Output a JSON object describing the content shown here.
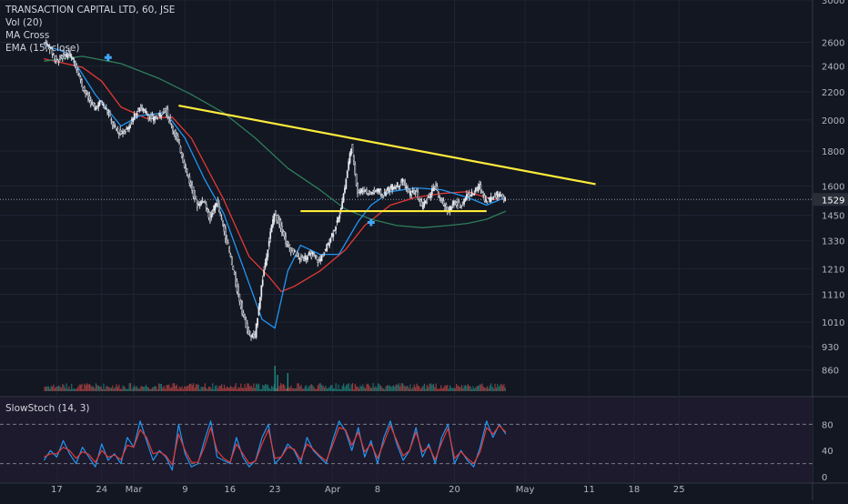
{
  "chart_data": [
    {
      "type": "candlestick",
      "title": "TRANSACTION CAPITAL LTD, 60, JSE",
      "indicators": [
        "Vol (20)",
        "MA Cross",
        "EMA (15, close)"
      ],
      "yscale": "log",
      "ylim": [
        800,
        3000
      ],
      "y_ticks": [
        3000,
        2600,
        2400,
        2200,
        2000,
        1800,
        1600,
        1450,
        1330,
        1210,
        1110,
        1010,
        930,
        860
      ],
      "last_price": 1529,
      "x_ticks": [
        "17",
        "24",
        "Mar",
        "9",
        "16",
        "23",
        "Apr",
        "8",
        "20",
        "May",
        "11",
        "18",
        "25"
      ],
      "x_tick_days": [
        -12,
        -5,
        0,
        8,
        15,
        22,
        31,
        38,
        50,
        61,
        71,
        78,
        85
      ],
      "close_series": {
        "x_day": [
          -14,
          -13,
          -12,
          -11,
          -10,
          -9,
          -8,
          -7,
          -6,
          -5,
          -4,
          -3,
          -2,
          -1,
          0,
          1,
          2,
          3,
          4,
          5,
          6,
          7,
          8,
          9,
          10,
          11,
          12,
          13,
          14,
          15,
          16,
          17,
          18,
          19,
          20,
          21,
          22,
          23,
          24,
          25,
          26,
          27,
          28,
          29,
          30,
          31,
          32,
          33,
          34,
          35,
          36,
          37,
          38,
          39,
          40,
          41,
          42,
          43,
          44,
          45,
          46,
          47,
          48,
          49,
          50,
          51,
          52,
          53,
          54,
          55,
          56,
          57,
          58
        ],
        "close": [
          2600,
          2560,
          2440,
          2480,
          2500,
          2420,
          2250,
          2150,
          2080,
          2130,
          2060,
          1950,
          1910,
          1940,
          2010,
          2090,
          2050,
          2000,
          2030,
          2080,
          1960,
          1860,
          1720,
          1600,
          1500,
          1530,
          1430,
          1520,
          1400,
          1280,
          1150,
          1050,
          970,
          960,
          1140,
          1300,
          1460,
          1400,
          1310,
          1280,
          1250,
          1260,
          1270,
          1240,
          1290,
          1360,
          1430,
          1590,
          1830,
          1570,
          1580,
          1560,
          1580,
          1550,
          1590,
          1600,
          1630,
          1560,
          1570,
          1490,
          1540,
          1600,
          1520,
          1470,
          1510,
          1500,
          1550,
          1560,
          1600,
          1520,
          1540,
          1560,
          1529
        ]
      },
      "moving_averages": [
        {
          "color": "#e53935",
          "points_day_price": [
            [
              -14,
              2460
            ],
            [
              -8,
              2390
            ],
            [
              -5,
              2280
            ],
            [
              -2,
              2090
            ],
            [
              2,
              2010
            ],
            [
              6,
              2020
            ],
            [
              9,
              1880
            ],
            [
              12,
              1660
            ],
            [
              14,
              1530
            ],
            [
              18,
              1260
            ],
            [
              21,
              1180
            ],
            [
              23,
              1120
            ],
            [
              25,
              1140
            ],
            [
              29,
              1200
            ],
            [
              33,
              1290
            ],
            [
              36,
              1400
            ],
            [
              40,
              1500
            ],
            [
              44,
              1540
            ],
            [
              48,
              1560
            ],
            [
              52,
              1570
            ],
            [
              56,
              1530
            ],
            [
              58,
              1530
            ]
          ]
        },
        {
          "color": "#2e7d5b",
          "points_day_price": [
            [
              -14,
              2440
            ],
            [
              -8,
              2480
            ],
            [
              -2,
              2420
            ],
            [
              4,
              2300
            ],
            [
              9,
              2180
            ],
            [
              14,
              2050
            ],
            [
              19,
              1880
            ],
            [
              24,
              1700
            ],
            [
              29,
              1580
            ],
            [
              33,
              1480
            ],
            [
              37,
              1430
            ],
            [
              41,
              1400
            ],
            [
              45,
              1390
            ],
            [
              49,
              1400
            ],
            [
              52,
              1410
            ],
            [
              55,
              1430
            ],
            [
              58,
              1470
            ]
          ]
        },
        {
          "color": "#2196f3",
          "points_day_price": [
            [
              -14,
              2580
            ],
            [
              -10,
              2500
            ],
            [
              -6,
              2180
            ],
            [
              -2,
              1960
            ],
            [
              1,
              2030
            ],
            [
              5,
              2050
            ],
            [
              8,
              1880
            ],
            [
              11,
              1640
            ],
            [
              14,
              1460
            ],
            [
              17,
              1220
            ],
            [
              20,
              1020
            ],
            [
              22,
              990
            ],
            [
              24,
              1200
            ],
            [
              26,
              1310
            ],
            [
              29,
              1270
            ],
            [
              32,
              1270
            ],
            [
              35,
              1420
            ],
            [
              37,
              1500
            ],
            [
              40,
              1570
            ],
            [
              44,
              1590
            ],
            [
              48,
              1580
            ],
            [
              52,
              1540
            ],
            [
              55,
              1500
            ],
            [
              58,
              1540
            ]
          ]
        }
      ],
      "cross_markers_day_price": [
        [
          -4,
          2470
        ],
        [
          37,
          1415
        ]
      ],
      "trendlines": [
        {
          "color": "#ffeb3b",
          "from_day_price": [
            7,
            2100
          ],
          "to_day_price": [
            72,
            1610
          ]
        },
        {
          "color": "#ffeb3b",
          "from_day_price": [
            26,
            1470
          ],
          "to_day_price": [
            55,
            1470
          ]
        }
      ]
    },
    {
      "type": "line",
      "title": "SlowStoch (14, 3)",
      "ylim": [
        0,
        100
      ],
      "y_ticks": [
        0,
        40,
        80
      ],
      "levels": [
        20,
        80
      ],
      "series": [
        {
          "color": "#2196f3",
          "x_day": [
            -14,
            -13,
            -12,
            -11,
            -10,
            -9,
            -8,
            -7,
            -6,
            -5,
            -4,
            -3,
            -2,
            -1,
            0,
            1,
            2,
            3,
            4,
            5,
            6,
            7,
            8,
            9,
            10,
            11,
            12,
            13,
            14,
            15,
            16,
            17,
            18,
            19,
            20,
            21,
            22,
            23,
            24,
            25,
            26,
            27,
            28,
            29,
            30,
            31,
            32,
            33,
            34,
            35,
            36,
            37,
            38,
            39,
            40,
            41,
            42,
            43,
            44,
            45,
            46,
            47,
            48,
            49,
            50,
            51,
            52,
            53,
            54,
            55,
            56,
            57,
            58
          ],
          "values": [
            25,
            40,
            30,
            55,
            35,
            20,
            45,
            30,
            15,
            50,
            25,
            35,
            20,
            60,
            45,
            85,
            55,
            25,
            40,
            30,
            10,
            80,
            35,
            15,
            20,
            55,
            85,
            30,
            25,
            20,
            60,
            30,
            15,
            25,
            60,
            80,
            20,
            30,
            50,
            40,
            20,
            60,
            40,
            30,
            20,
            55,
            85,
            70,
            40,
            75,
            30,
            55,
            20,
            60,
            85,
            50,
            25,
            40,
            75,
            30,
            50,
            20,
            60,
            80,
            20,
            40,
            25,
            15,
            45,
            85,
            60,
            80,
            65
          ]
        },
        {
          "color": "#e53935",
          "x_day": [
            -14,
            -13,
            -12,
            -11,
            -10,
            -9,
            -8,
            -7,
            -6,
            -5,
            -4,
            -3,
            -2,
            -1,
            0,
            1,
            2,
            3,
            4,
            5,
            6,
            7,
            8,
            9,
            10,
            11,
            12,
            13,
            14,
            15,
            16,
            17,
            18,
            19,
            20,
            21,
            22,
            23,
            24,
            25,
            26,
            27,
            28,
            29,
            30,
            31,
            32,
            33,
            34,
            35,
            36,
            37,
            38,
            39,
            40,
            41,
            42,
            43,
            44,
            45,
            46,
            47,
            48,
            49,
            50,
            51,
            52,
            53,
            54,
            55,
            56,
            57,
            58
          ],
          "values": [
            30,
            35,
            35,
            45,
            40,
            28,
            38,
            34,
            22,
            40,
            30,
            33,
            26,
            48,
            45,
            72,
            60,
            35,
            38,
            32,
            18,
            65,
            40,
            22,
            22,
            45,
            75,
            40,
            28,
            22,
            50,
            35,
            20,
            24,
            50,
            72,
            28,
            30,
            45,
            42,
            26,
            50,
            42,
            32,
            24,
            48,
            75,
            72,
            48,
            68,
            38,
            50,
            28,
            52,
            78,
            55,
            32,
            40,
            68,
            38,
            46,
            26,
            52,
            74,
            28,
            38,
            28,
            20,
            38,
            75,
            65,
            78,
            68
          ]
        }
      ]
    }
  ],
  "ui": {
    "title": "TRANSACTION CAPITAL LTD, 60, JSE",
    "ind1": "Vol (20)",
    "ind2": "MA Cross",
    "ind3": "EMA (15, close)",
    "stoch": "SlowStoch (14, 3)",
    "last_price": "1529"
  }
}
